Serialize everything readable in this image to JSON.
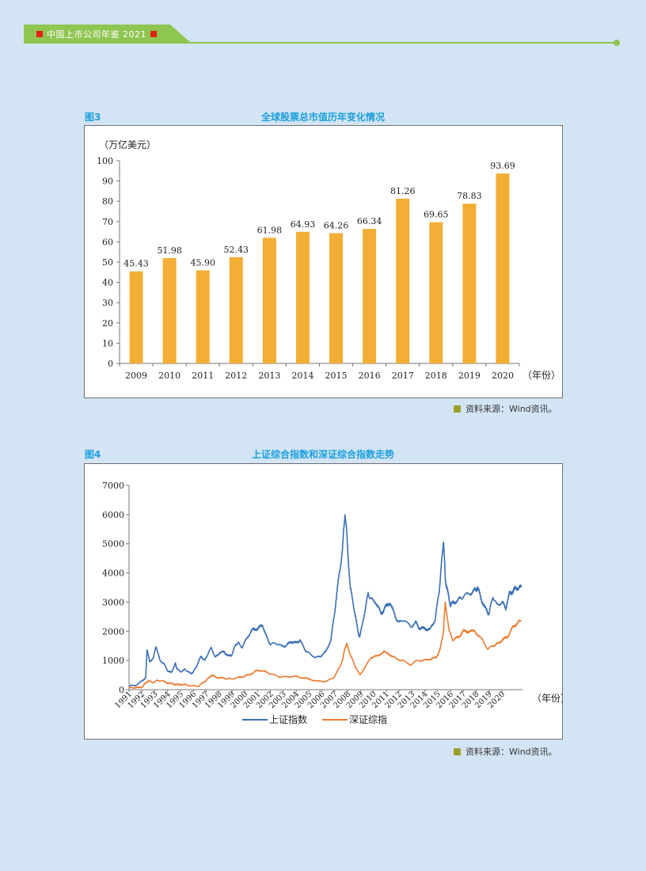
{
  "header": {
    "book_title": "中国上市公司年鉴 2021",
    "colors": {
      "bar": "#8fc551",
      "marker": "#e32219"
    }
  },
  "figure3": {
    "label": "图3",
    "title": "全球股票总市值历年变化情况",
    "source": "资料来源：Wind资讯。"
  },
  "figure4": {
    "label": "图4",
    "title": "上证综合指数和深证综合指数走势",
    "source": "资料来源：Wind资讯。"
  },
  "chart_data": [
    {
      "type": "bar",
      "title": "全球股票总市值历年变化情况",
      "ylabel": "（万亿美元）",
      "xlabel": "（年份）",
      "ylim": [
        0,
        100
      ],
      "yticks": [
        0,
        10,
        20,
        30,
        40,
        50,
        60,
        70,
        80,
        90,
        100
      ],
      "categories": [
        "2009",
        "2010",
        "2011",
        "2012",
        "2013",
        "2014",
        "2015",
        "2016",
        "2017",
        "2018",
        "2019",
        "2020"
      ],
      "values": [
        45.43,
        51.98,
        45.9,
        52.43,
        61.98,
        64.93,
        64.26,
        66.34,
        81.26,
        69.65,
        78.83,
        93.69
      ],
      "value_labels": [
        "45.43",
        "51.98",
        "45.90",
        "52.43",
        "61.98",
        "64.93",
        "64.26",
        "66.34",
        "81.26",
        "69.65",
        "78.83",
        "93.69"
      ],
      "color": "#f3ae35"
    },
    {
      "type": "line",
      "title": "上证综合指数和深证综合指数走势",
      "xlabel": "（年份）",
      "ylim": [
        0,
        7000
      ],
      "yticks": [
        0,
        1000,
        2000,
        3000,
        4000,
        5000,
        6000,
        7000
      ],
      "xlim": [
        1991,
        2021.6
      ],
      "xticks": [
        "1991",
        "1992",
        "1993",
        "1994",
        "1995",
        "1996",
        "1997",
        "1998",
        "1999",
        "2000",
        "2001",
        "2002",
        "2003",
        "2004",
        "2005",
        "2006",
        "2007",
        "2008",
        "2009",
        "2010",
        "2011",
        "2012",
        "2013",
        "2014",
        "2015",
        "2016",
        "2017",
        "2018",
        "2019",
        "2020"
      ],
      "legend_position": "bottom",
      "series": [
        {
          "name": "上证指数",
          "color": "#3b6fb6",
          "x": [
            1991.0,
            1991.5,
            1992.0,
            1992.3,
            1992.4,
            1992.6,
            1992.9,
            1993.1,
            1993.4,
            1993.7,
            1994.0,
            1994.3,
            1994.6,
            1994.7,
            1995.0,
            1995.3,
            1995.5,
            1995.8,
            1996.0,
            1996.3,
            1996.6,
            1996.9,
            1997.1,
            1997.4,
            1997.7,
            1998.0,
            1998.4,
            1998.7,
            1999.0,
            1999.3,
            1999.5,
            1999.8,
            2000.2,
            2000.6,
            2001.0,
            2001.4,
            2001.7,
            2002.0,
            2002.4,
            2002.8,
            2003.2,
            2003.6,
            2004.0,
            2004.3,
            2004.7,
            2005.0,
            2005.5,
            2005.9,
            2006.3,
            2006.7,
            2007.0,
            2007.3,
            2007.6,
            2007.8,
            2007.95,
            2008.2,
            2008.5,
            2008.8,
            2008.95,
            2009.3,
            2009.6,
            2009.8,
            2010.2,
            2010.6,
            2010.9,
            2011.3,
            2011.7,
            2012.0,
            2012.4,
            2012.9,
            2013.3,
            2013.6,
            2014.0,
            2014.4,
            2014.8,
            2015.1,
            2015.3,
            2015.45,
            2015.6,
            2015.8,
            2016.0,
            2016.3,
            2016.7,
            2017.0,
            2017.5,
            2017.9,
            2018.1,
            2018.4,
            2018.8,
            2019.0,
            2019.3,
            2019.6,
            2020.0,
            2020.3,
            2020.6,
            2020.9,
            2021.2,
            2021.5
          ],
          "y": [
            130,
            150,
            290,
            420,
            1400,
            950,
            1100,
            1500,
            1000,
            900,
            650,
            580,
            900,
            750,
            600,
            700,
            650,
            550,
            600,
            850,
            1150,
            1000,
            1200,
            1450,
            1100,
            1250,
            1300,
            1150,
            1200,
            1550,
            1600,
            1450,
            1800,
            2050,
            2100,
            2200,
            1800,
            1550,
            1600,
            1500,
            1500,
            1650,
            1600,
            1700,
            1350,
            1250,
            1100,
            1150,
            1300,
            1700,
            2700,
            3800,
            4800,
            6100,
            5200,
            3500,
            2800,
            2000,
            1800,
            2600,
            3300,
            3100,
            3000,
            2600,
            2800,
            3000,
            2500,
            2300,
            2400,
            2150,
            2300,
            2100,
            2100,
            2050,
            2400,
            3300,
            4300,
            5150,
            3800,
            3300,
            2900,
            3000,
            3100,
            3200,
            3300,
            3400,
            3500,
            3100,
            2700,
            2600,
            3200,
            2900,
            3000,
            2800,
            3300,
            3400,
            3500,
            3500
          ]
        },
        {
          "name": "深证综指",
          "color": "#ec7c30",
          "x": [
            1991.0,
            1991.5,
            1992.0,
            1992.3,
            1992.5,
            1992.9,
            1993.2,
            1993.6,
            1994.0,
            1994.4,
            1994.7,
            1995.1,
            1995.5,
            1996.0,
            1996.4,
            1996.8,
            1997.1,
            1997.4,
            1997.8,
            1998.2,
            1998.6,
            1999.0,
            1999.5,
            1999.9,
            2000.4,
            2000.9,
            2001.4,
            2001.8,
            2002.3,
            2002.8,
            2003.4,
            2004.0,
            2004.6,
            2005.2,
            2005.8,
            2006.4,
            2006.9,
            2007.3,
            2007.6,
            2007.8,
            2007.95,
            2008.3,
            2008.6,
            2008.95,
            2009.4,
            2009.8,
            2010.3,
            2010.8,
            2011.3,
            2011.8,
            2012.3,
            2012.9,
            2013.4,
            2013.9,
            2014.4,
            2014.9,
            2015.2,
            2015.45,
            2015.6,
            2015.9,
            2016.2,
            2016.6,
            2017.0,
            2017.4,
            2017.9,
            2018.4,
            2018.9,
            2019.3,
            2019.6,
            2020.0,
            2020.4,
            2020.8,
            2021.2,
            2021.5
          ],
          "y": [
            100,
            60,
            90,
            230,
            300,
            250,
            320,
            300,
            230,
            200,
            170,
            180,
            160,
            130,
            120,
            260,
            350,
            500,
            420,
            400,
            380,
            370,
            420,
            450,
            520,
            650,
            650,
            580,
            500,
            430,
            450,
            450,
            400,
            340,
            280,
            300,
            400,
            700,
            1000,
            1450,
            1550,
            1100,
            800,
            500,
            800,
            1100,
            1150,
            1300,
            1200,
            1050,
            1000,
            850,
            1000,
            1000,
            1050,
            1100,
            1400,
            2000,
            3000,
            2000,
            1700,
            1800,
            2000,
            2000,
            2000,
            1750,
            1400,
            1500,
            1550,
            1700,
            1800,
            2100,
            2300,
            2350
          ]
        }
      ]
    }
  ]
}
